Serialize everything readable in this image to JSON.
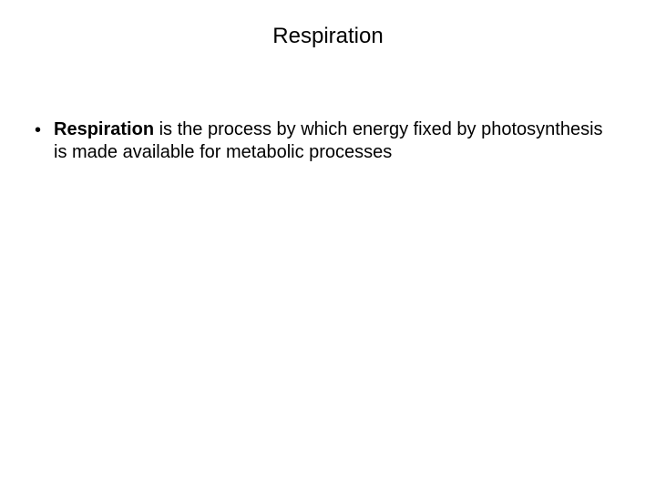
{
  "slide": {
    "title": "Respiration",
    "title_fontsize": 24,
    "title_color": "#000000",
    "background_color": "#ffffff",
    "bullet": {
      "marker": "•",
      "bold_term": "Respiration",
      "rest_text": " is the process by which energy fixed by photosynthesis is made available for metabolic processes",
      "fontsize": 20,
      "text_color": "#000000"
    }
  }
}
